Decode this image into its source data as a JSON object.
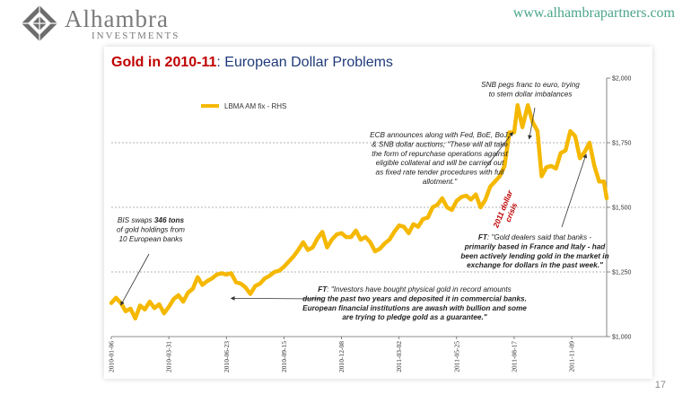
{
  "header": {
    "brand_name": "Alhambra",
    "brand_sub": "INVESTMENTS",
    "url": "www.alhambrapartners.com"
  },
  "slide": {
    "page_number": "17"
  },
  "chart_data": {
    "type": "line",
    "title_part1": "Gold in 2010-11",
    "title_part2": ": European Dollar Problems",
    "legend": "LBMA AM fix - RHS",
    "legend_position": "top-left",
    "series_color": "#f5b800",
    "y_axis_side": "right",
    "ylim": [
      1000,
      2000
    ],
    "y_ticks": [
      {
        "value": 1000,
        "label": "$1,000"
      },
      {
        "value": 1250,
        "label": "$1,250"
      },
      {
        "value": 1500,
        "label": "$1,500"
      },
      {
        "value": 1750,
        "label": "$1,750"
      },
      {
        "value": 2000,
        "label": "$2,000"
      }
    ],
    "x_range": [
      "2010-01-06",
      "2011-12-30"
    ],
    "x_ticks": [
      "2010-01-06",
      "2010-03-31",
      "2010-06-23",
      "2010-09-15",
      "2010-12-08",
      "2011-03-02",
      "2011-05-25",
      "2011-08-17",
      "2011-11-09"
    ],
    "gridlines": [
      1250,
      1500,
      1750
    ],
    "series": [
      {
        "name": "LBMA AM fix - RHS",
        "points": [
          [
            "2010-01-06",
            1130
          ],
          [
            "2010-01-13",
            1150
          ],
          [
            "2010-01-20",
            1130
          ],
          [
            "2010-01-27",
            1098
          ],
          [
            "2010-02-03",
            1108
          ],
          [
            "2010-02-10",
            1070
          ],
          [
            "2010-02-17",
            1120
          ],
          [
            "2010-02-24",
            1105
          ],
          [
            "2010-03-03",
            1135
          ],
          [
            "2010-03-10",
            1110
          ],
          [
            "2010-03-17",
            1125
          ],
          [
            "2010-03-24",
            1090
          ],
          [
            "2010-03-31",
            1115
          ],
          [
            "2010-04-07",
            1145
          ],
          [
            "2010-04-14",
            1160
          ],
          [
            "2010-04-21",
            1135
          ],
          [
            "2010-04-28",
            1170
          ],
          [
            "2010-05-05",
            1185
          ],
          [
            "2010-05-12",
            1230
          ],
          [
            "2010-05-19",
            1200
          ],
          [
            "2010-05-26",
            1215
          ],
          [
            "2010-06-02",
            1225
          ],
          [
            "2010-06-09",
            1240
          ],
          [
            "2010-06-16",
            1245
          ],
          [
            "2010-06-23",
            1240
          ],
          [
            "2010-06-30",
            1245
          ],
          [
            "2010-07-07",
            1210
          ],
          [
            "2010-07-14",
            1205
          ],
          [
            "2010-07-21",
            1190
          ],
          [
            "2010-07-28",
            1165
          ],
          [
            "2010-08-04",
            1195
          ],
          [
            "2010-08-11",
            1205
          ],
          [
            "2010-08-18",
            1225
          ],
          [
            "2010-08-25",
            1235
          ],
          [
            "2010-09-01",
            1250
          ],
          [
            "2010-09-08",
            1255
          ],
          [
            "2010-09-15",
            1270
          ],
          [
            "2010-09-22",
            1290
          ],
          [
            "2010-09-29",
            1310
          ],
          [
            "2010-10-06",
            1335
          ],
          [
            "2010-10-13",
            1365
          ],
          [
            "2010-10-20",
            1335
          ],
          [
            "2010-10-27",
            1345
          ],
          [
            "2010-11-03",
            1380
          ],
          [
            "2010-11-10",
            1405
          ],
          [
            "2010-11-17",
            1345
          ],
          [
            "2010-11-24",
            1375
          ],
          [
            "2010-12-01",
            1395
          ],
          [
            "2010-12-08",
            1400
          ],
          [
            "2010-12-15",
            1385
          ],
          [
            "2010-12-22",
            1385
          ],
          [
            "2010-12-29",
            1410
          ],
          [
            "2011-01-05",
            1375
          ],
          [
            "2011-01-12",
            1385
          ],
          [
            "2011-01-19",
            1365
          ],
          [
            "2011-01-26",
            1330
          ],
          [
            "2011-02-02",
            1340
          ],
          [
            "2011-02-09",
            1360
          ],
          [
            "2011-02-16",
            1375
          ],
          [
            "2011-02-23",
            1405
          ],
          [
            "2011-03-02",
            1430
          ],
          [
            "2011-03-09",
            1425
          ],
          [
            "2011-03-16",
            1400
          ],
          [
            "2011-03-23",
            1435
          ],
          [
            "2011-03-30",
            1425
          ],
          [
            "2011-04-06",
            1455
          ],
          [
            "2011-04-13",
            1460
          ],
          [
            "2011-04-20",
            1500
          ],
          [
            "2011-04-27",
            1510
          ],
          [
            "2011-05-04",
            1535
          ],
          [
            "2011-05-11",
            1500
          ],
          [
            "2011-05-18",
            1490
          ],
          [
            "2011-05-25",
            1525
          ],
          [
            "2011-06-01",
            1540
          ],
          [
            "2011-06-08",
            1545
          ],
          [
            "2011-06-15",
            1530
          ],
          [
            "2011-06-22",
            1550
          ],
          [
            "2011-06-29",
            1500
          ],
          [
            "2011-07-06",
            1530
          ],
          [
            "2011-07-13",
            1580
          ],
          [
            "2011-07-20",
            1600
          ],
          [
            "2011-07-27",
            1620
          ],
          [
            "2011-08-03",
            1660
          ],
          [
            "2011-08-10",
            1790
          ],
          [
            "2011-08-17",
            1790
          ],
          [
            "2011-08-22",
            1895
          ],
          [
            "2011-08-29",
            1810
          ],
          [
            "2011-09-06",
            1895
          ],
          [
            "2011-09-13",
            1830
          ],
          [
            "2011-09-20",
            1795
          ],
          [
            "2011-09-26",
            1620
          ],
          [
            "2011-10-03",
            1655
          ],
          [
            "2011-10-10",
            1660
          ],
          [
            "2011-10-17",
            1650
          ],
          [
            "2011-10-24",
            1710
          ],
          [
            "2011-10-31",
            1720
          ],
          [
            "2011-11-07",
            1795
          ],
          [
            "2011-11-14",
            1775
          ],
          [
            "2011-11-21",
            1690
          ],
          [
            "2011-11-28",
            1715
          ],
          [
            "2011-12-05",
            1750
          ],
          [
            "2011-12-12",
            1660
          ],
          [
            "2011-12-19",
            1600
          ],
          [
            "2011-12-26",
            1600
          ],
          [
            "2011-12-30",
            1535
          ]
        ]
      }
    ],
    "annotations": [
      {
        "id": "snb",
        "lines": [
          [
            "SNB pegs franc to euro, trying"
          ],
          [
            "to stem dollar imbalances"
          ]
        ],
        "arrow_to": [
          "2011-09-08",
          1765
        ]
      },
      {
        "id": "ecb",
        "lines": [
          [
            "ECB announces along with Fed, BoE, BoJ,"
          ],
          [
            "& SNB dollar auctions; \"These will all take"
          ],
          [
            "the form of repurchase operations against"
          ],
          [
            "eligible collateral and will be carried out"
          ],
          [
            "as fixed rate tender procedures with full"
          ],
          [
            "allotment.\""
          ]
        ],
        "arrow_to": [
          "2011-08-15",
          1790
        ]
      },
      {
        "id": "bis",
        "lines": [
          [
            "BIS swaps ",
            "346 tons"
          ],
          [
            "of gold holdings from"
          ],
          [
            "10 European banks"
          ]
        ],
        "arrow_to": [
          "2010-01-20",
          1122
        ]
      },
      {
        "id": "ft1",
        "lines": [
          [
            "FT",
            ": \"Investors have bought physical gold in record amounts"
          ],
          [
            "during the past two years and deposited it in commercial banks."
          ],
          [
            "European financial institutions are awash with bullion and some"
          ],
          [
            "are trying to pledge gold as a guarantee.\""
          ]
        ],
        "arrow_to": [
          "2010-06-30",
          1148
        ]
      },
      {
        "id": "ft2",
        "lines": [
          [
            "FT",
            ":  \"Gold dealers said that banks -"
          ],
          [
            "primarily based in France and Italy - had"
          ],
          [
            "been actively lending gold in the market in"
          ],
          [
            "exchange for dollars in the past week.\""
          ]
        ],
        "arrow_to": [
          "2011-11-30",
          1705
        ]
      }
    ],
    "crisis_label_lines": [
      "2011 dollar",
      "crisis"
    ]
  }
}
